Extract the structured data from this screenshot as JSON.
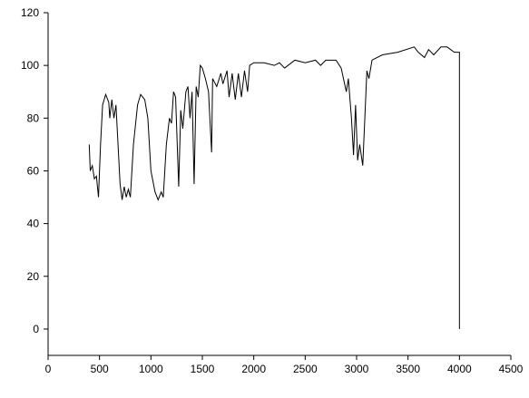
{
  "chart_data": {
    "type": "line",
    "x": [
      400,
      410,
      430,
      450,
      470,
      490,
      510,
      530,
      560,
      590,
      600,
      620,
      640,
      660,
      680,
      700,
      720,
      740,
      760,
      780,
      800,
      830,
      870,
      900,
      940,
      970,
      1000,
      1040,
      1070,
      1100,
      1120,
      1150,
      1180,
      1200,
      1220,
      1240,
      1270,
      1290,
      1310,
      1340,
      1360,
      1380,
      1400,
      1420,
      1440,
      1460,
      1480,
      1500,
      1530,
      1560,
      1590,
      1600,
      1640,
      1680,
      1700,
      1740,
      1760,
      1790,
      1820,
      1850,
      1880,
      1910,
      1940,
      1960,
      2000,
      2100,
      2200,
      2250,
      2300,
      2400,
      2500,
      2600,
      2650,
      2700,
      2800,
      2850,
      2900,
      2920,
      2950,
      2970,
      2990,
      3010,
      3030,
      3060,
      3080,
      3100,
      3120,
      3150,
      3250,
      3400,
      3560,
      3600,
      3660,
      3700,
      3750,
      3820,
      3880,
      3950,
      4000,
      4000
    ],
    "series": [
      {
        "color": "#000000",
        "values": [
          70,
          60,
          62,
          57,
          58,
          50,
          70,
          85,
          89,
          86,
          80,
          87,
          80,
          85,
          70,
          55,
          49,
          54,
          50,
          53,
          50,
          70,
          85,
          89,
          87,
          80,
          60,
          52,
          49,
          52,
          50,
          70,
          80,
          78,
          90,
          88,
          54,
          83,
          76,
          90,
          92,
          80,
          90,
          55,
          92,
          88,
          100,
          99,
          95,
          90,
          67,
          95,
          92,
          97,
          93,
          98,
          88,
          97,
          87,
          97,
          88,
          98,
          90,
          100,
          101,
          101,
          100,
          101,
          99,
          102,
          101,
          102,
          100,
          102,
          102,
          99,
          90,
          95,
          80,
          66,
          85,
          64,
          70,
          62,
          80,
          98,
          95,
          102,
          104,
          105,
          107,
          105,
          103,
          106,
          104,
          107,
          107,
          105,
          105,
          0
        ]
      }
    ],
    "xlim": [
      0,
      4500
    ],
    "xticks": [
      0,
      500,
      1000,
      1500,
      2000,
      2500,
      3000,
      3500,
      4000,
      4500
    ],
    "ylim": [
      -10,
      120
    ],
    "yticks": [
      0,
      20,
      40,
      60,
      80,
      100,
      120
    ]
  }
}
